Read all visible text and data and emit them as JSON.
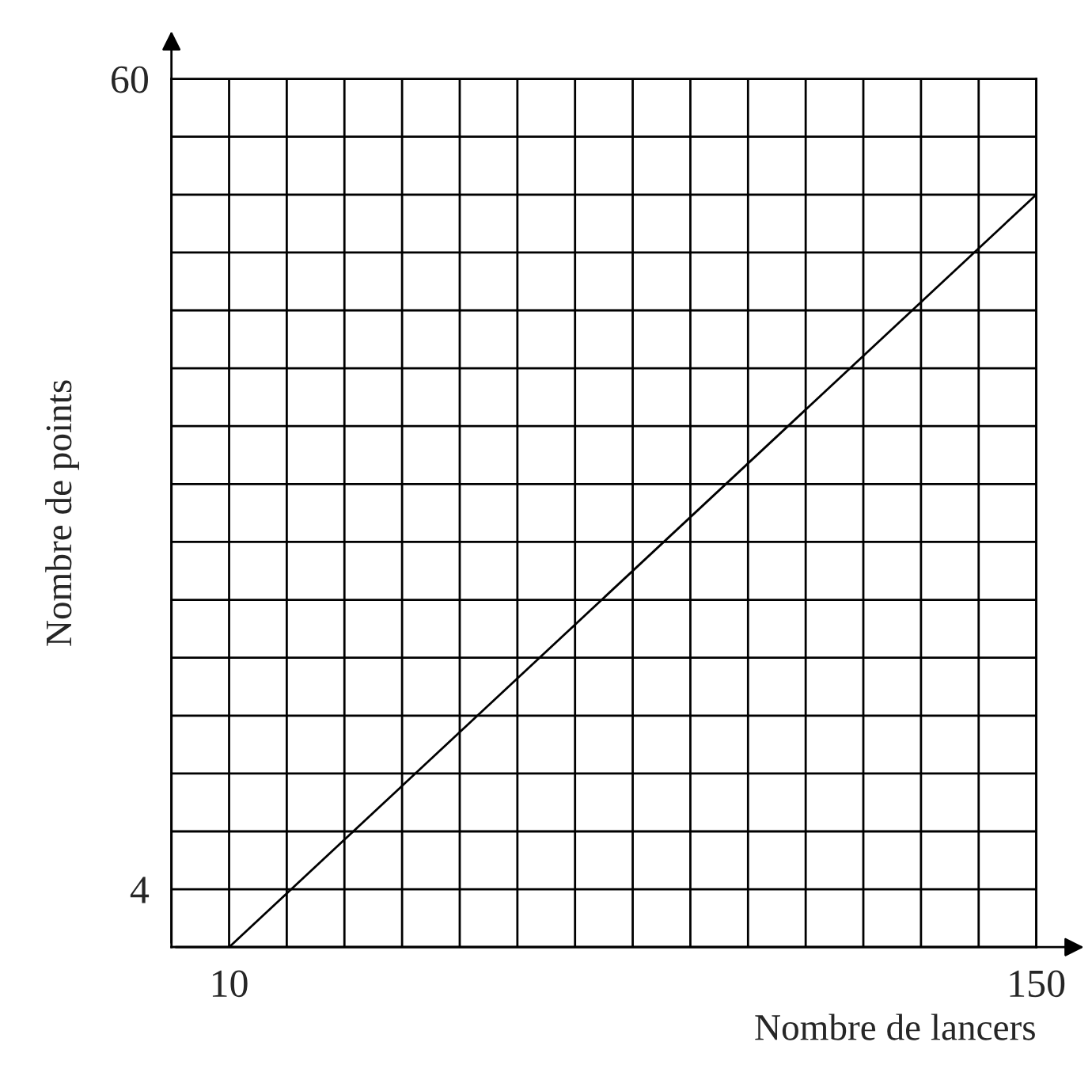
{
  "chart_data": {
    "type": "line",
    "xlabel": "Nombre de lancers",
    "ylabel": "Nombre de points",
    "series": [
      {
        "color": "#000000",
        "x": [
          10,
          150
        ],
        "values": [
          0,
          52
        ]
      }
    ],
    "xlim": [
      0,
      150
    ],
    "ylim": [
      0,
      60
    ],
    "xticks": [
      {
        "value": 0,
        "label": null
      },
      10,
      {
        "value": 20,
        "label": null
      },
      {
        "value": 30,
        "label": null
      },
      {
        "value": 40,
        "label": null
      },
      {
        "value": 50,
        "label": null
      },
      {
        "value": 60,
        "label": null
      },
      {
        "value": 70,
        "label": null
      },
      {
        "value": 80,
        "label": null
      },
      {
        "value": 90,
        "label": null
      },
      {
        "value": 100,
        "label": null
      },
      {
        "value": 110,
        "label": null
      },
      {
        "value": 120,
        "label": null
      },
      {
        "value": 130,
        "label": null
      },
      {
        "value": 140,
        "label": null
      },
      150
    ],
    "yticks": [
      {
        "value": 0,
        "label": null
      },
      4,
      {
        "value": 8,
        "label": null
      },
      {
        "value": 12,
        "label": null
      },
      {
        "value": 16,
        "label": null
      },
      {
        "value": 20,
        "label": null
      },
      {
        "value": 24,
        "label": null
      },
      {
        "value": 28,
        "label": null
      },
      {
        "value": 32,
        "label": null
      },
      {
        "value": 36,
        "label": null
      },
      {
        "value": 40,
        "label": null
      },
      {
        "value": 44,
        "label": null
      },
      {
        "value": 48,
        "label": null
      },
      {
        "value": 52,
        "label": null
      },
      {
        "value": 56,
        "label": null
      },
      60
    ],
    "grid": true,
    "line_style": "solid",
    "marker": "none"
  }
}
